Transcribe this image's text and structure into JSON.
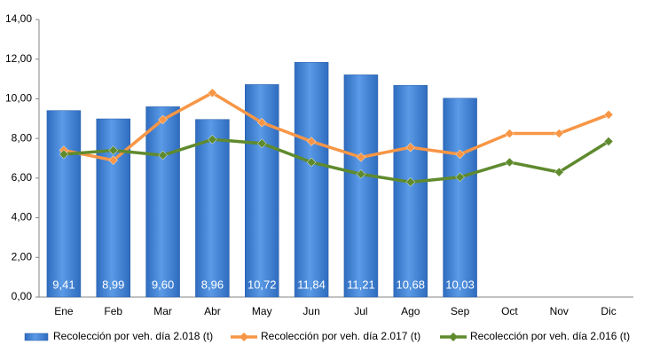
{
  "chart_data": {
    "type": "bar",
    "categories": [
      "Ene",
      "Feb",
      "Mar",
      "Abr",
      "May",
      "Jun",
      "Jul",
      "Ago",
      "Sep",
      "Oct",
      "Nov",
      "Dic"
    ],
    "series": [
      {
        "name": "Recolección por veh. día 2.018 (t)",
        "type": "bar",
        "color": "#3b7dd0",
        "values": [
          9.41,
          8.99,
          9.6,
          8.96,
          10.72,
          11.84,
          11.21,
          10.68,
          10.03,
          null,
          null,
          null
        ],
        "value_labels": [
          "9,41",
          "8,99",
          "9,60",
          "8,96",
          "10,72",
          "11,84",
          "11,21",
          "10,68",
          "10,03",
          null,
          null,
          null
        ]
      },
      {
        "name": "Recolección por veh. día 2.017 (t)",
        "type": "line",
        "color": "#f79646",
        "values": [
          7.4,
          6.9,
          8.95,
          10.3,
          8.8,
          7.85,
          7.05,
          7.55,
          7.2,
          8.25,
          8.25,
          9.2
        ]
      },
      {
        "name": "Recolección por veh. día 2.016 (t)",
        "type": "line",
        "color": "#5f8a2e",
        "values": [
          7.2,
          7.4,
          7.15,
          7.95,
          7.75,
          6.8,
          6.2,
          5.8,
          6.05,
          6.8,
          6.3,
          7.85
        ]
      }
    ],
    "ylim": [
      0,
      14
    ],
    "yticks": [
      {
        "value": 0,
        "label": "0,00"
      },
      {
        "value": 2,
        "label": "2,00"
      },
      {
        "value": 4,
        "label": "4,00"
      },
      {
        "value": 6,
        "label": "6,00"
      },
      {
        "value": 8,
        "label": "8,00"
      },
      {
        "value": 10,
        "label": "10,00"
      },
      {
        "value": 12,
        "label": "12,00"
      },
      {
        "value": 14,
        "label": "14,00"
      }
    ],
    "grid": false,
    "legend": "bottom"
  }
}
